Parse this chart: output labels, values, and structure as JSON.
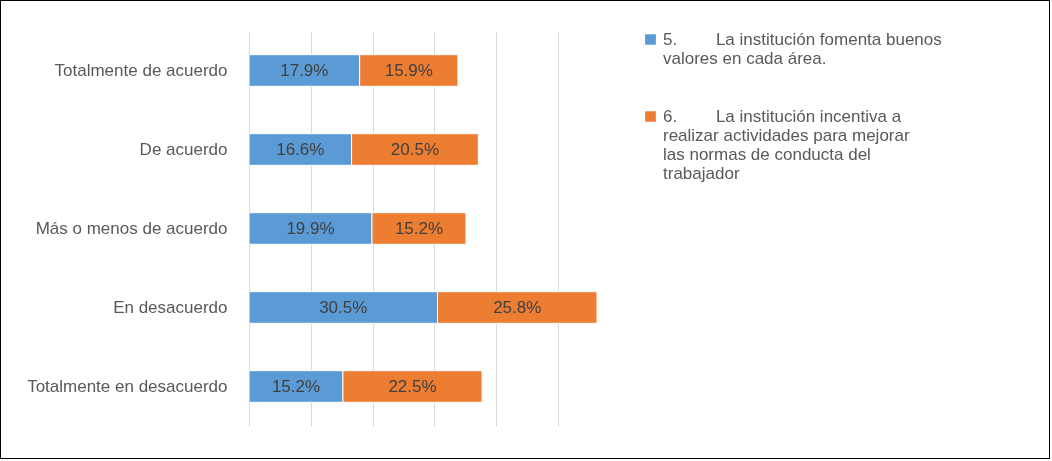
{
  "chart_data": {
    "type": "bar",
    "orientation": "horizontal",
    "stacked": true,
    "grid": "x",
    "legend": "right",
    "categories": [
      "Totalmente de acuerdo",
      "De acuerdo",
      "Más o menos de acuerdo",
      "En desacuerdo",
      "Totalmente en desacuerdo"
    ],
    "series": [
      {
        "name": "5.      La institución fomenta buenos valores en cada área.",
        "color": "#5b9bd5",
        "values": [
          17.9,
          16.6,
          19.9,
          30.5,
          15.2
        ],
        "value_labels": [
          "17.9%",
          "16.6%",
          "19.9%",
          "30.5%",
          "15.2%"
        ]
      },
      {
        "name": "6.      La institución incentiva a realizar actividades para mejorar las normas de conducta del trabajador",
        "color": "#ed7d31",
        "values": [
          15.9,
          20.5,
          15.2,
          25.8,
          22.5
        ],
        "value_labels": [
          "15.9%",
          "20.5%",
          "15.2%",
          "25.8%",
          "22.5%"
        ]
      }
    ]
  }
}
